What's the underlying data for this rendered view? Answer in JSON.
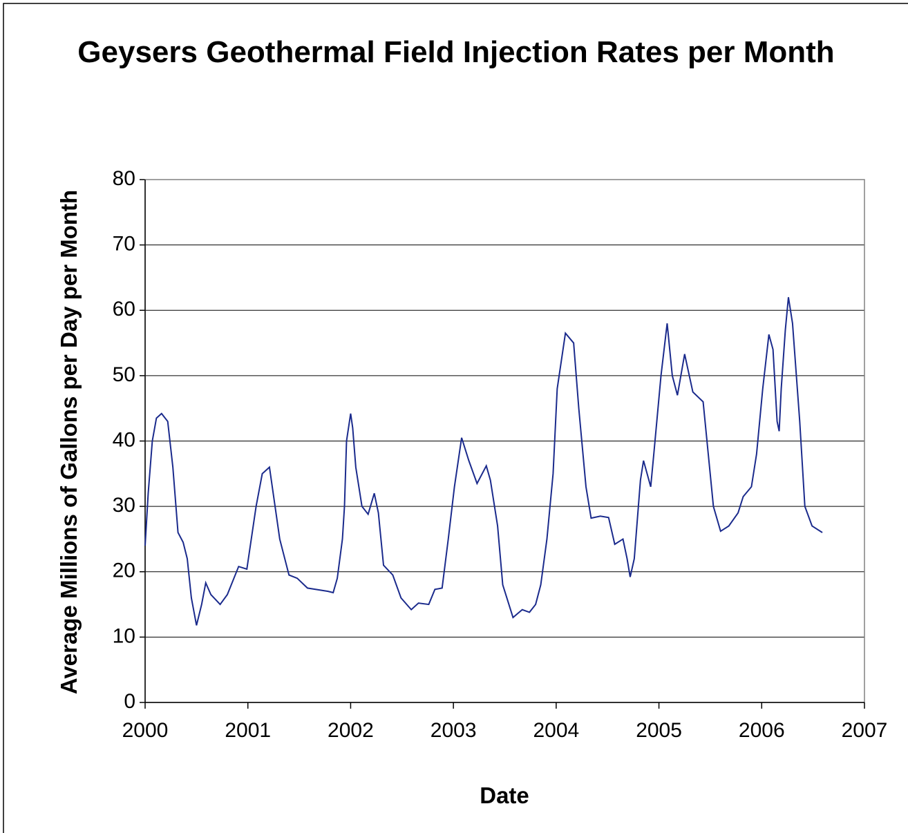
{
  "chart_data": {
    "type": "line",
    "title": "Geysers Geothermal Field Injection Rates per Month",
    "x_label": "Date",
    "y_label": "Average Millions of Gallons per Day per Month",
    "xlim": [
      2000,
      2007
    ],
    "xticks": [
      2000,
      2001,
      2002,
      2003,
      2004,
      2005,
      2006,
      2007
    ],
    "ylim": [
      0,
      80
    ],
    "yticks": [
      0,
      10,
      20,
      30,
      40,
      50,
      60,
      70,
      80
    ],
    "grid": true,
    "x": [
      2000.0,
      2000.03,
      2000.07,
      2000.11,
      2000.16,
      2000.22,
      2000.27,
      2000.32,
      2000.37,
      2000.41,
      2000.45,
      2000.5,
      2000.55,
      2000.59,
      2000.64,
      2000.73,
      2000.8,
      2000.91,
      2000.99,
      2001.08,
      2001.14,
      2001.21,
      2001.31,
      2001.4,
      2001.48,
      2001.58,
      2001.78,
      2001.83,
      2001.87,
      2001.92,
      2001.94,
      2001.96,
      2002.0,
      2002.02,
      2002.05,
      2002.11,
      2002.17,
      2002.23,
      2002.27,
      2002.32,
      2002.41,
      2002.49,
      2002.59,
      2002.66,
      2002.76,
      2002.82,
      2002.89,
      2002.95,
      2003.01,
      2003.08,
      2003.15,
      2003.23,
      2003.32,
      2003.36,
      2003.43,
      2003.48,
      2003.58,
      2003.67,
      2003.74,
      2003.8,
      2003.85,
      2003.91,
      2003.97,
      2004.01,
      2004.09,
      2004.17,
      2004.22,
      2004.29,
      2004.34,
      2004.43,
      2004.51,
      2004.57,
      2004.65,
      2004.69,
      2004.72,
      2004.76,
      2004.82,
      2004.85,
      2004.92,
      2004.95,
      2005.02,
      2005.08,
      2005.13,
      2005.18,
      2005.25,
      2005.33,
      2005.43,
      2005.48,
      2005.53,
      2005.6,
      2005.68,
      2005.77,
      2005.82,
      2005.9,
      2005.95,
      2006.01,
      2006.07,
      2006.11,
      2006.15,
      2006.17,
      2006.19,
      2006.23,
      2006.26,
      2006.3,
      2006.37,
      2006.42,
      2006.49,
      2006.59
    ],
    "series": [
      {
        "color": "#1a2a8c",
        "values": [
          24,
          32,
          40,
          43.5,
          44.2,
          43,
          36,
          26,
          24.5,
          22,
          16,
          11.8,
          15,
          18.3,
          16.5,
          15,
          16.5,
          20.8,
          20.4,
          30,
          35,
          36,
          25,
          19.5,
          19,
          17.5,
          17,
          16.8,
          19,
          25,
          30,
          40,
          44.2,
          42,
          36,
          30,
          28.8,
          32,
          29,
          21,
          19.5,
          16,
          14.2,
          15.2,
          15,
          17.3,
          17.5,
          25,
          33,
          40.5,
          37,
          33.5,
          36.2,
          34,
          27,
          18,
          13,
          14.2,
          13.8,
          15,
          18,
          25,
          35,
          48,
          56.5,
          55,
          45,
          33,
          28.2,
          28.5,
          28.3,
          24.2,
          25,
          22,
          19.2,
          22,
          34,
          37,
          33,
          38,
          50,
          58,
          50,
          47,
          53.3,
          47.5,
          46,
          38,
          30,
          26.2,
          27,
          29,
          31.5,
          33,
          38,
          48,
          56.3,
          54,
          43,
          41.5,
          48,
          57,
          62,
          58,
          43,
          30,
          27,
          26
        ]
      }
    ]
  }
}
